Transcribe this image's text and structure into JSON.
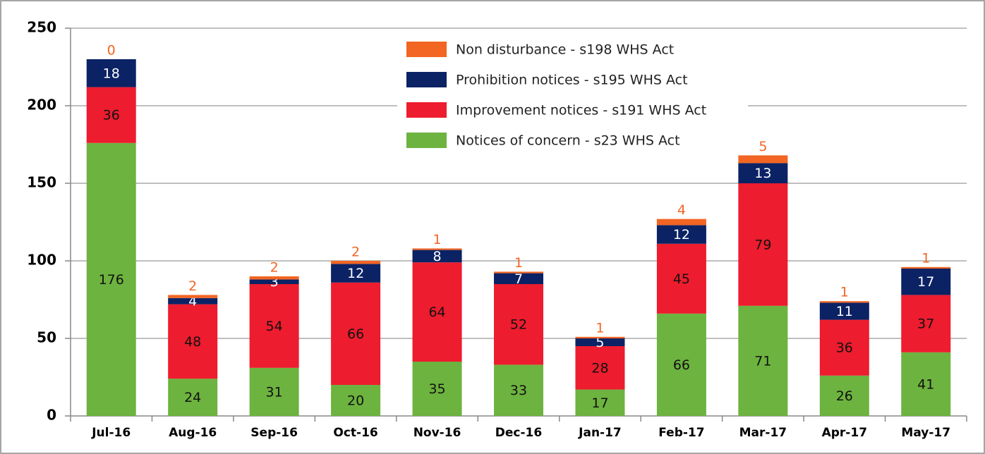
{
  "chart_data": {
    "type": "stacked_bar",
    "categories": [
      "Jul-16",
      "Aug-16",
      "Sep-16",
      "Oct-16",
      "Nov-16",
      "Dec-16",
      "Jan-17",
      "Feb-17",
      "Mar-17",
      "Apr-17",
      "May-17"
    ],
    "series": [
      {
        "name": "Notices of concern - s23 WHS Act",
        "color": "#6db33f",
        "values": [
          176,
          24,
          31,
          20,
          35,
          33,
          17,
          66,
          71,
          26,
          41
        ]
      },
      {
        "name": "Improvement notices - s191 WHS Act",
        "color": "#ed1c2e",
        "values": [
          36,
          48,
          54,
          66,
          64,
          52,
          28,
          45,
          79,
          36,
          37
        ]
      },
      {
        "name": "Prohibition notices - s195 WHS Act",
        "color": "#0b2265",
        "values": [
          18,
          4,
          3,
          12,
          8,
          7,
          5,
          12,
          13,
          11,
          17
        ]
      },
      {
        "name": "Non disturbance - s198 WHS Act",
        "color": "#f26522",
        "values": [
          0,
          2,
          2,
          2,
          1,
          1,
          1,
          4,
          5,
          1,
          1
        ]
      }
    ],
    "ylim": [
      0,
      250
    ],
    "yticks": [
      0,
      50,
      100,
      150,
      200,
      250
    ],
    "grid": true
  }
}
